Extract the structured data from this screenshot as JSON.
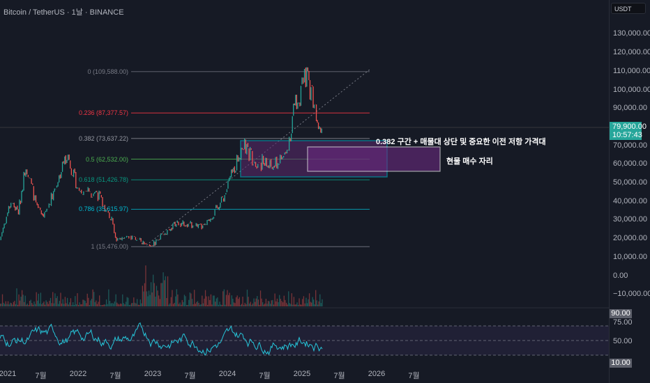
{
  "header": {
    "title": "Bitcoin / TetherUS · 1날 · BINANCE"
  },
  "price_axis": {
    "currency": "USDT",
    "labels": [
      "130,000.00",
      "120,000.00",
      "110,000.00",
      "100,000.00",
      "90,000.00",
      "70,000.00",
      "60,000.00",
      "50,000.00",
      "40,000.00",
      "30,000.00",
      "20,000.00",
      "10,000.00",
      "0.00",
      "−10,000.00"
    ],
    "current_price": "79,900.00",
    "countdown": "10:57:43"
  },
  "rsi_axis": {
    "labels": [
      "75.00",
      "50.00"
    ],
    "upper_tag": "90.00",
    "lower_tag": "10.00"
  },
  "time_axis": {
    "labels": [
      "2021",
      "7월",
      "2022",
      "7월",
      "2023",
      "7월",
      "2024",
      "7월",
      "2025",
      "7월",
      "2026",
      "7월"
    ]
  },
  "fib": [
    {
      "label": "0 (109,588.00)",
      "value": 109588,
      "color": "#787b86"
    },
    {
      "label": "0.236 (87,377.57)",
      "value": 87377.57,
      "color": "#f23645"
    },
    {
      "label": "0.382 (73,637.22)",
      "value": 73637.22,
      "color": "#9598a1"
    },
    {
      "label": "0.5 (62,532.00)",
      "value": 62532,
      "color": "#4caf50"
    },
    {
      "label": "0.618 (51,426.78)",
      "value": 51426.78,
      "color": "#089981"
    },
    {
      "label": "0.786 (35,615.97)",
      "value": 35615.97,
      "color": "#00bcd4"
    },
    {
      "label": "1 (15,476.00)",
      "value": 15476,
      "color": "#787b86"
    }
  ],
  "annotations": {
    "zone_note": "0.382 구간 + 매물대 상단 및 중요한 이전 저항 가격대",
    "buy_note": "현물 매수 자리"
  },
  "colors": {
    "up": "#26a69a",
    "down": "#ef5350",
    "rsi": "#26c6da",
    "box": "#00bcd4",
    "zone": "#5b2a6e"
  },
  "price_path": [
    [
      2020.95,
      19000
    ],
    [
      2021.1,
      40000
    ],
    [
      2021.2,
      34000
    ],
    [
      2021.3,
      60000
    ],
    [
      2021.45,
      36000
    ],
    [
      2021.55,
      32000
    ],
    [
      2021.7,
      48000
    ],
    [
      2021.85,
      66000
    ],
    [
      2022.0,
      46000
    ],
    [
      2022.25,
      45000
    ],
    [
      2022.45,
      29000
    ],
    [
      2022.5,
      20000
    ],
    [
      2022.8,
      20000
    ],
    [
      2022.9,
      16000
    ],
    [
      2023.0,
      16500
    ],
    [
      2023.3,
      28000
    ],
    [
      2023.7,
      26000
    ],
    [
      2023.95,
      42000
    ],
    [
      2024.2,
      70000
    ],
    [
      2024.35,
      63000
    ],
    [
      2024.6,
      58000
    ],
    [
      2024.8,
      66000
    ],
    [
      2024.9,
      92000
    ],
    [
      2025.0,
      100000
    ],
    [
      2025.05,
      108000
    ],
    [
      2025.15,
      96000
    ],
    [
      2025.22,
      84000
    ],
    [
      2025.28,
      79900
    ]
  ]
}
